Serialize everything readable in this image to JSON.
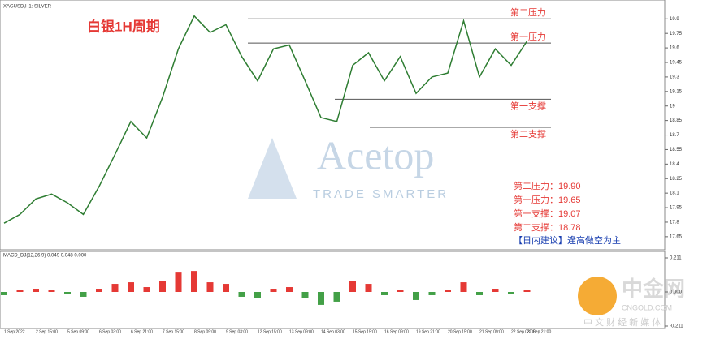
{
  "chart_data": [
    {
      "type": "line",
      "title": "白银1H周期",
      "symbol": "XAGUSD,H1: SILVER",
      "color": "#2e7d32",
      "categories": [
        "1 Sep 2022",
        null,
        "2 Sep 15:00",
        null,
        "5 Sep 09:00",
        null,
        "6 Sep 03:00",
        null,
        "6 Sep 21:00",
        null,
        "7 Sep 15:00",
        null,
        "8 Sep 09:00",
        null,
        "9 Sep 03:00",
        null,
        "12 Sep 15:00",
        null,
        "13 Sep 09:00",
        null,
        "14 Sep 03:00",
        null,
        "15 Sep 15:00",
        null,
        "16 Sep 09:00",
        null,
        "19 Sep 21:00",
        null,
        "20 Sep 15:00",
        null,
        "21 Sep 09:00",
        null,
        "22 Sep 03:00",
        "22 Sep 21:00"
      ],
      "values": [
        17.79,
        17.88,
        18.04,
        18.09,
        18.0,
        17.88,
        18.17,
        18.5,
        18.84,
        18.67,
        19.09,
        19.59,
        19.93,
        19.76,
        19.84,
        19.51,
        19.26,
        19.59,
        19.63,
        19.26,
        18.88,
        18.84,
        19.42,
        19.55,
        19.26,
        19.51,
        19.13,
        19.3,
        19.34,
        19.88,
        19.3,
        19.59,
        19.42,
        19.67
      ],
      "ylim": [
        17.54,
        20.07
      ],
      "yticks": [
        17.65,
        17.8,
        17.95,
        18.1,
        18.25,
        18.4,
        18.55,
        18.7,
        18.85,
        19.0,
        19.15,
        19.3,
        19.45,
        19.6,
        19.75,
        19.9
      ],
      "levels": {
        "names": [
          "第二压力",
          "第一压力",
          "第一支撑",
          "第二支撑"
        ],
        "values": [
          19.9,
          19.65,
          19.07,
          18.78
        ],
        "value_labels": [
          "第二压力：19.90",
          "第一压力：19.65",
          "第一支撑：19.07",
          "第二支撑：18.78"
        ]
      },
      "advice": "【日内建议】逢高做空为主"
    },
    {
      "type": "bar",
      "title": "MACD_DJ(12,26,9) 0.049 0.048 0.000",
      "up_color": "#e53935",
      "down_color": "#43a047",
      "values": [
        -0.02,
        0.01,
        0.02,
        0.01,
        -0.01,
        -0.03,
        0.02,
        0.05,
        0.06,
        0.03,
        0.07,
        0.12,
        0.13,
        0.06,
        0.05,
        -0.03,
        -0.04,
        0.02,
        0.03,
        -0.04,
        -0.08,
        -0.06,
        0.07,
        0.05,
        -0.02,
        0.01,
        -0.05,
        -0.02,
        0.01,
        0.06,
        -0.02,
        0.02,
        -0.01,
        0.01
      ],
      "ylim": [
        -0.211,
        0.211
      ],
      "yticks": [
        {
          "value": -0.211,
          "label": "-0.211"
        },
        {
          "value": 0,
          "label": "0.000"
        },
        {
          "value": 0.211,
          "label": "0.211"
        }
      ]
    }
  ],
  "watermark": {
    "brand": "Acetop",
    "slogan": "TRADE SMARTER"
  },
  "logo": {
    "name": "中金网",
    "site": "CNGOLD.COM",
    "tagline": "中 文 财 经 新 媒 体"
  }
}
